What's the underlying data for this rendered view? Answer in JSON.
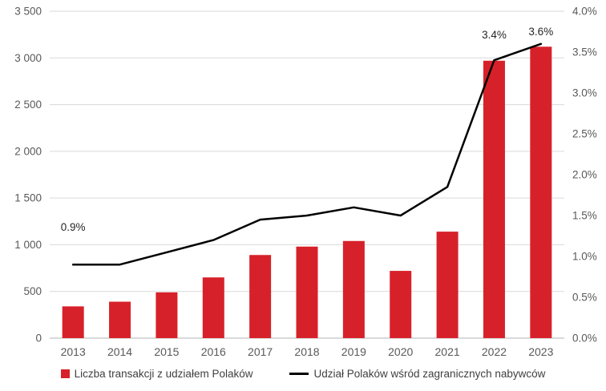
{
  "chart_data": {
    "type": "bar",
    "subtype": "bar+line combo",
    "categories": [
      "2013",
      "2014",
      "2015",
      "2016",
      "2017",
      "2018",
      "2019",
      "2020",
      "2021",
      "2022",
      "2023"
    ],
    "series": [
      {
        "name": "Liczba transakcji z udziałem Polaków",
        "type": "bar",
        "axis": "left",
        "color": "#d7212a",
        "values": [
          340,
          390,
          490,
          650,
          890,
          980,
          1040,
          720,
          1140,
          2970,
          3120
        ]
      },
      {
        "name": "Udział Polaków wśród zagranicznych nabywców",
        "type": "line",
        "axis": "right",
        "color": "#000000",
        "values": [
          0.9,
          0.9,
          1.05,
          1.2,
          1.45,
          1.5,
          1.6,
          1.5,
          1.85,
          3.4,
          3.6
        ]
      }
    ],
    "left_axis": {
      "min": 0,
      "max": 3500,
      "tick_values": [
        0,
        500,
        1000,
        1500,
        2000,
        2500,
        3000,
        3500
      ],
      "tick_labels": [
        "0",
        "500",
        "1 000",
        "1 500",
        "2 000",
        "2 500",
        "3 000",
        "3 500"
      ]
    },
    "right_axis": {
      "min": 0,
      "max": 4,
      "tick_values": [
        0,
        0.5,
        1,
        1.5,
        2,
        2.5,
        3,
        3.5,
        4
      ],
      "tick_labels": [
        "0.0%",
        "0.5%",
        "1.0%",
        "1.5%",
        "2.0%",
        "2.5%",
        "3.0%",
        "3.5%",
        "4.0%"
      ]
    },
    "annotations": [
      {
        "category": "2013",
        "text": "0.9%",
        "dy": -42
      },
      {
        "category": "2022",
        "text": "3.4%",
        "dy": -27
      },
      {
        "category": "2023",
        "text": "3.6%",
        "dy": -11
      }
    ],
    "grid": true,
    "gridline_color": "#d9d9d9",
    "axis_line_color": "#b3b3b3",
    "axis_text_color": "#595959",
    "annotation_text_color": "#262626",
    "legend_position": "bottom"
  }
}
